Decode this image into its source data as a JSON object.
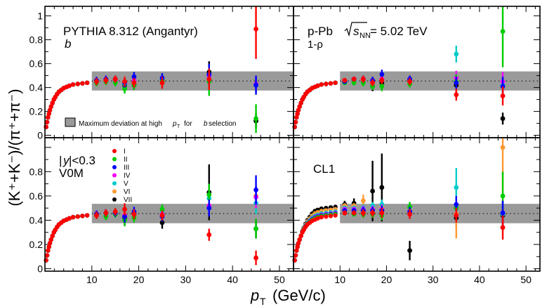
{
  "chart_data": {
    "type": "scatter",
    "ylabel_text": "(K⁺+K⁻)/(π⁺+π⁻)",
    "xlabel_text": "p",
    "xlabel_sub": "T",
    "xlabel_units": "(GeV/c)",
    "xlim": [
      0,
      53
    ],
    "ylim": [
      -0.02,
      1.08
    ],
    "x_ticks": [
      "10",
      "20",
      "30",
      "40",
      "50"
    ],
    "y_ticks": [
      "0",
      "0.2",
      "0.4",
      "0.6",
      "0.8",
      "1"
    ],
    "band": {
      "x_range": [
        10,
        53
      ],
      "y_range": [
        0.375,
        0.535
      ],
      "reference": 0.455
    },
    "band_legend": {
      "label_main": "Maximum deviation at high",
      "label_p": "p",
      "label_sub": "T",
      "label_for": "for",
      "label_b": "b",
      "label_end": "selection"
    },
    "classes": [
      {
        "name": "I",
        "color": "#ff0000"
      },
      {
        "name": "II",
        "color": "#00cc00"
      },
      {
        "name": "III",
        "color": "#0000ff"
      },
      {
        "name": "IV",
        "color": "#ff00ff"
      },
      {
        "name": "V",
        "color": "#00cccc"
      },
      {
        "name": "VI",
        "color": "#ff9933"
      },
      {
        "name": "VII",
        "color": "#000000"
      }
    ],
    "low_pt": {
      "x": [
        0.25,
        0.45,
        0.65,
        0.85,
        1.05,
        1.3,
        1.6,
        1.9,
        2.2,
        2.6,
        3.0,
        3.5,
        4.0,
        4.6,
        5.2,
        6.0,
        7.0,
        8.0,
        9.0
      ],
      "y": [
        0.07,
        0.11,
        0.15,
        0.18,
        0.21,
        0.24,
        0.27,
        0.3,
        0.32,
        0.345,
        0.365,
        0.38,
        0.395,
        0.405,
        0.415,
        0.425,
        0.43,
        0.435,
        0.44
      ]
    },
    "panels": [
      {
        "id": "b",
        "line1": "PYTHIA 8.312 (Angantyr)",
        "line2": "b",
        "points": [
          {
            "x": 11,
            "vals": [
              0.45,
              0.44,
              0.46,
              0.45,
              0.45,
              0.46,
              0.45
            ],
            "errs": [
              0.03,
              0.03,
              0.03,
              0.03,
              0.03,
              0.03,
              0.03
            ]
          },
          {
            "x": 13,
            "vals": [
              0.46,
              0.45,
              0.47,
              0.46,
              0.46,
              0.46,
              0.46
            ],
            "errs": [
              0.03,
              0.03,
              0.03,
              0.03,
              0.03,
              0.03,
              0.03
            ]
          },
          {
            "x": 15,
            "vals": [
              0.47,
              0.44,
              0.47,
              0.46,
              0.45,
              0.46,
              0.47
            ],
            "errs": [
              0.03,
              0.03,
              0.03,
              0.03,
              0.03,
              0.03,
              0.03
            ]
          },
          {
            "x": 17,
            "vals": [
              0.45,
              0.39,
              0.44,
              0.44,
              0.43,
              0.45,
              0.42
            ],
            "errs": [
              0.04,
              0.04,
              0.04,
              0.04,
              0.04,
              0.04,
              0.04
            ]
          },
          {
            "x": 19,
            "vals": [
              0.44,
              0.42,
              0.49,
              0.46,
              0.45,
              0.45,
              0.42
            ],
            "errs": [
              0.04,
              0.04,
              0.04,
              0.04,
              0.04,
              0.04,
              0.04
            ]
          },
          {
            "x": 25,
            "vals": [
              0.44,
              0.46,
              0.48,
              0.46,
              0.47,
              0.46,
              0.46
            ],
            "errs": [
              0.05,
              0.04,
              0.04,
              0.04,
              0.04,
              0.04,
              0.04
            ]
          },
          {
            "x": 35,
            "vals": [
              0.47,
              0.45,
              0.51,
              0.5,
              0.49,
              0.48,
              0.53
            ],
            "errs": [
              0.09,
              0.12,
              0.09,
              0.08,
              0.08,
              0.08,
              0.09
            ]
          },
          {
            "x": 45,
            "vals": [
              0.89,
              0.14,
              0.42,
              0.43,
              0.42,
              0.43,
              0.12
            ],
            "errs": [
              0.25,
              0.12,
              0.08,
              0.06,
              0.06,
              0.06,
              0.06
            ]
          }
        ]
      },
      {
        "id": "1-rho",
        "line1": "p-Pb",
        "energy_sqrt": "s",
        "energy_sub": "NN",
        "energy_value": "= 5.02 TeV",
        "line2": "1-ρ",
        "points": [
          {
            "x": 11,
            "vals": [
              0.46,
              0.44,
              0.45,
              0.46,
              0.45,
              0.46,
              0.45
            ],
            "errs": [
              0.02,
              0.02,
              0.02,
              0.02,
              0.02,
              0.02,
              0.02
            ]
          },
          {
            "x": 13,
            "vals": [
              0.47,
              0.44,
              0.47,
              0.47,
              0.46,
              0.46,
              0.46
            ],
            "errs": [
              0.02,
              0.02,
              0.02,
              0.02,
              0.02,
              0.02,
              0.02
            ]
          },
          {
            "x": 15,
            "vals": [
              0.47,
              0.44,
              0.47,
              0.47,
              0.47,
              0.46,
              0.46
            ],
            "errs": [
              0.03,
              0.03,
              0.03,
              0.03,
              0.03,
              0.03,
              0.03
            ]
          },
          {
            "x": 17,
            "vals": [
              0.44,
              0.41,
              0.46,
              0.45,
              0.45,
              0.46,
              0.41
            ],
            "errs": [
              0.03,
              0.03,
              0.03,
              0.03,
              0.03,
              0.03,
              0.04
            ]
          },
          {
            "x": 19,
            "vals": [
              0.46,
              0.41,
              0.51,
              0.47,
              0.47,
              0.46,
              0.44
            ],
            "errs": [
              0.03,
              0.04,
              0.04,
              0.04,
              0.04,
              0.04,
              0.04
            ]
          },
          {
            "x": 25,
            "vals": [
              0.45,
              0.43,
              0.47,
              0.47,
              0.47,
              0.47,
              0.46
            ],
            "errs": [
              0.03,
              0.03,
              0.03,
              0.03,
              0.03,
              0.03,
              0.03
            ]
          },
          {
            "x": 35,
            "vals": [
              0.34,
              0.45,
              0.44,
              0.48,
              0.68,
              0.44,
              0.42
            ],
            "errs": [
              0.05,
              0.06,
              0.05,
              0.06,
              0.07,
              0.06,
              0.06
            ]
          },
          {
            "x": 45,
            "vals": [
              0.33,
              0.87,
              0.41,
              0.45,
              0.42,
              0.42,
              0.14
            ],
            "errs": [
              0.08,
              0.3,
              0.08,
              0.08,
              0.08,
              0.08,
              0.05
            ]
          }
        ]
      },
      {
        "id": "V0M",
        "line1_y": "y",
        "line1_rest": "<0.3",
        "line2": "V0M",
        "points": [
          {
            "x": 11,
            "vals": [
              0.44,
              0.44,
              0.45,
              0.45,
              0.45,
              0.45,
              0.45
            ],
            "errs": [
              0.03,
              0.03,
              0.03,
              0.03,
              0.03,
              0.03,
              0.03
            ]
          },
          {
            "x": 13,
            "vals": [
              0.46,
              0.43,
              0.46,
              0.46,
              0.45,
              0.46,
              0.46
            ],
            "errs": [
              0.03,
              0.03,
              0.03,
              0.03,
              0.03,
              0.03,
              0.03
            ]
          },
          {
            "x": 15,
            "vals": [
              0.47,
              0.45,
              0.46,
              0.46,
              0.45,
              0.47,
              0.46
            ],
            "errs": [
              0.03,
              0.03,
              0.03,
              0.03,
              0.03,
              0.03,
              0.03
            ]
          },
          {
            "x": 17,
            "vals": [
              0.49,
              0.4,
              0.43,
              0.44,
              0.43,
              0.45,
              0.42
            ],
            "errs": [
              0.05,
              0.05,
              0.05,
              0.05,
              0.05,
              0.05,
              0.06
            ]
          },
          {
            "x": 19,
            "vals": [
              0.45,
              0.42,
              0.47,
              0.46,
              0.46,
              0.46,
              0.45
            ],
            "errs": [
              0.04,
              0.04,
              0.04,
              0.04,
              0.04,
              0.04,
              0.04
            ]
          },
          {
            "x": 25,
            "vals": [
              0.44,
              0.49,
              0.43,
              0.45,
              0.46,
              0.46,
              0.38
            ],
            "errs": [
              0.04,
              0.04,
              0.04,
              0.04,
              0.04,
              0.04,
              0.05
            ]
          },
          {
            "x": 35,
            "vals": [
              0.28,
              0.61,
              0.5,
              0.52,
              0.58,
              0.52,
              0.63
            ],
            "errs": [
              0.05,
              0.09,
              0.07,
              0.07,
              0.08,
              0.07,
              0.23
            ]
          },
          {
            "x": 45,
            "vals": [
              0.09,
              0.33,
              0.65,
              0.59,
              0.54,
              0.6,
              0.33
            ],
            "errs": [
              0.06,
              0.08,
              0.12,
              0.09,
              0.09,
              0.09,
              0.08
            ]
          }
        ]
      },
      {
        "id": "CL1",
        "line1": "CL1",
        "low_extra": [
          {
            "vals_offset": [
              0.0,
              0.01,
              0.015,
              0.02,
              0.03,
              0.05,
              0.07
            ]
          }
        ],
        "points": [
          {
            "x": 11,
            "vals": [
              0.46,
              0.46,
              0.48,
              0.49,
              0.5,
              0.52,
              0.53
            ],
            "errs": [
              0.02,
              0.02,
              0.02,
              0.02,
              0.02,
              0.02,
              0.03
            ]
          },
          {
            "x": 13,
            "vals": [
              0.46,
              0.45,
              0.48,
              0.49,
              0.5,
              0.52,
              0.54
            ],
            "errs": [
              0.02,
              0.02,
              0.02,
              0.02,
              0.02,
              0.02,
              0.04
            ]
          },
          {
            "x": 15,
            "vals": [
              0.46,
              0.45,
              0.48,
              0.49,
              0.5,
              0.56,
              0.48
            ],
            "errs": [
              0.03,
              0.03,
              0.03,
              0.03,
              0.03,
              0.05,
              0.05
            ]
          },
          {
            "x": 17,
            "vals": [
              0.46,
              0.45,
              0.48,
              0.49,
              0.52,
              0.5,
              0.64
            ],
            "errs": [
              0.03,
              0.03,
              0.03,
              0.03,
              0.03,
              0.04,
              0.25
            ]
          },
          {
            "x": 19,
            "vals": [
              0.46,
              0.44,
              0.48,
              0.49,
              0.53,
              0.51,
              0.67
            ],
            "errs": [
              0.04,
              0.04,
              0.04,
              0.04,
              0.04,
              0.04,
              0.28
            ]
          },
          {
            "x": 25,
            "vals": [
              0.45,
              0.51,
              0.47,
              0.47,
              0.47,
              0.47,
              0.15
            ],
            "errs": [
              0.04,
              0.04,
              0.04,
              0.04,
              0.04,
              0.04,
              0.08
            ]
          },
          {
            "x": 35,
            "vals": [
              0.44,
              0.5,
              0.53,
              0.5,
              0.67,
              0.45,
              0.42
            ],
            "errs": [
              0.06,
              0.07,
              0.07,
              0.07,
              0.16,
              0.2,
              0.08
            ]
          },
          {
            "x": 45,
            "vals": [
              0.34,
              0.6,
              0.46,
              0.46,
              0.45,
              1.0,
              0.44
            ],
            "errs": [
              0.1,
              0.2,
              0.1,
              0.09,
              0.09,
              0.55,
              0.09
            ]
          }
        ]
      }
    ]
  }
}
